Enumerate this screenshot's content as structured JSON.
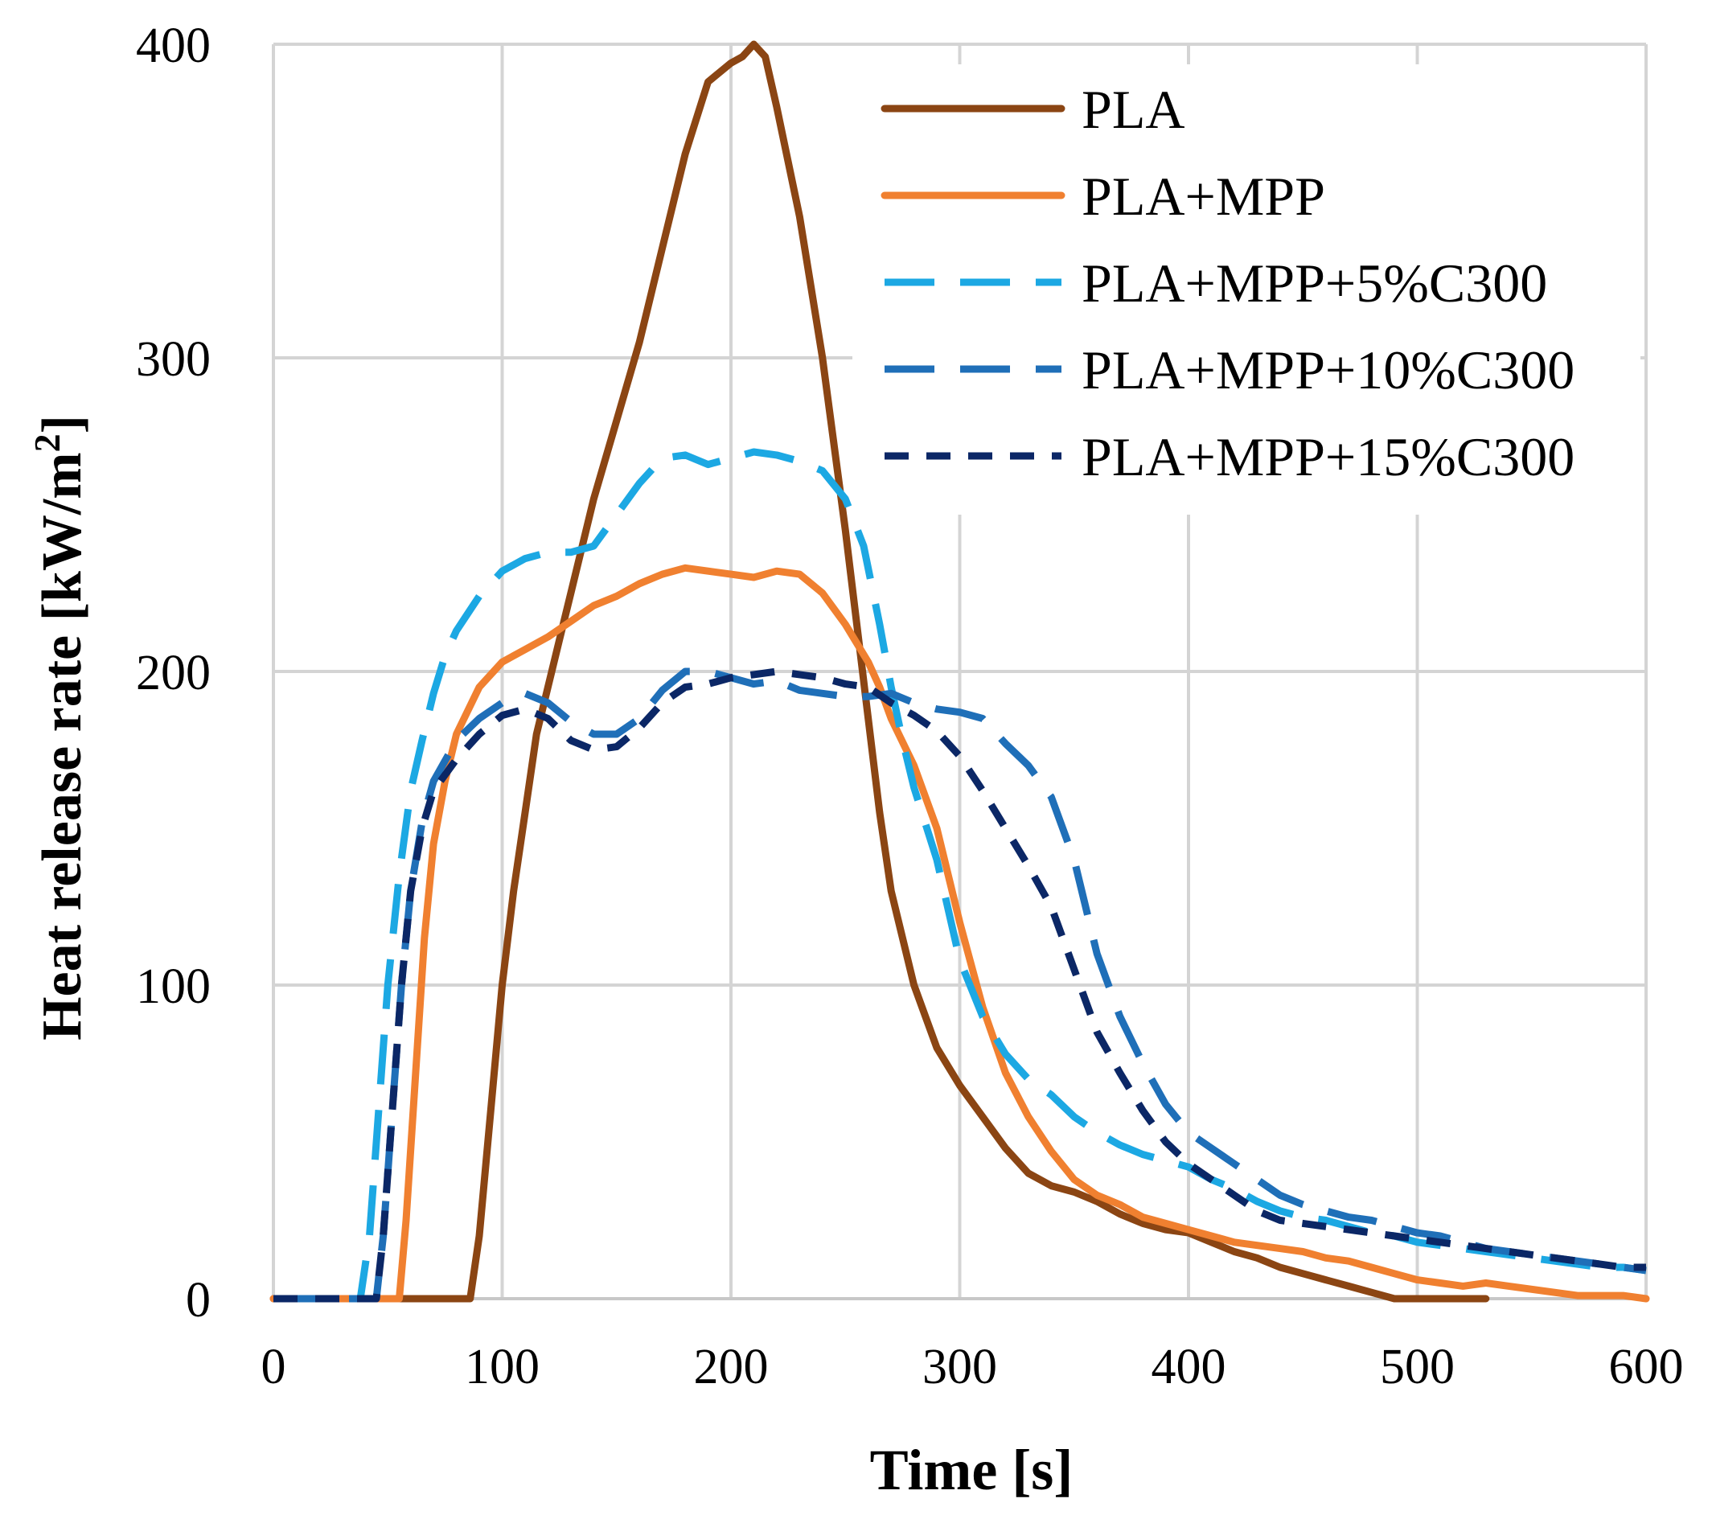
{
  "chart_data": {
    "type": "line",
    "title": "",
    "xlabel": "Time [s]",
    "ylabel": "Heat release rate [kW/m",
    "ylabel_superscript": "2",
    "ylabel_suffix": "]",
    "xlim": [
      0,
      600
    ],
    "ylim": [
      0,
      400
    ],
    "x_ticks": [
      "0",
      "100",
      "200",
      "300",
      "400",
      "500",
      "600"
    ],
    "y_ticks": [
      "0",
      "100",
      "200",
      "300",
      "400"
    ],
    "grid": true,
    "legend_position": "top-right",
    "series": [
      {
        "name": "PLA",
        "color": "#8B4513",
        "dash": "solid",
        "points": [
          [
            0,
            0
          ],
          [
            86,
            0
          ],
          [
            90,
            20
          ],
          [
            95,
            60
          ],
          [
            100,
            100
          ],
          [
            105,
            130
          ],
          [
            110,
            155
          ],
          [
            115,
            180
          ],
          [
            120,
            195
          ],
          [
            125,
            210
          ],
          [
            130,
            225
          ],
          [
            135,
            240
          ],
          [
            140,
            255
          ],
          [
            150,
            280
          ],
          [
            160,
            305
          ],
          [
            170,
            335
          ],
          [
            180,
            365
          ],
          [
            190,
            388
          ],
          [
            200,
            394
          ],
          [
            205,
            396
          ],
          [
            210,
            400
          ],
          [
            215,
            396
          ],
          [
            220,
            380
          ],
          [
            230,
            345
          ],
          [
            240,
            300
          ],
          [
            250,
            245
          ],
          [
            260,
            185
          ],
          [
            265,
            155
          ],
          [
            270,
            130
          ],
          [
            280,
            100
          ],
          [
            290,
            80
          ],
          [
            300,
            68
          ],
          [
            310,
            58
          ],
          [
            320,
            48
          ],
          [
            330,
            40
          ],
          [
            340,
            36
          ],
          [
            350,
            34
          ],
          [
            360,
            31
          ],
          [
            370,
            27
          ],
          [
            380,
            24
          ],
          [
            390,
            22
          ],
          [
            400,
            21
          ],
          [
            410,
            18
          ],
          [
            420,
            15
          ],
          [
            430,
            13
          ],
          [
            440,
            10
          ],
          [
            450,
            8
          ],
          [
            460,
            6
          ],
          [
            470,
            4
          ],
          [
            480,
            2
          ],
          [
            490,
            0
          ],
          [
            530,
            0
          ]
        ]
      },
      {
        "name": "PLA+MPP",
        "color": "#F08030",
        "dash": "solid",
        "points": [
          [
            0,
            0
          ],
          [
            55,
            0
          ],
          [
            58,
            25
          ],
          [
            62,
            70
          ],
          [
            66,
            115
          ],
          [
            70,
            145
          ],
          [
            75,
            165
          ],
          [
            80,
            180
          ],
          [
            90,
            195
          ],
          [
            100,
            203
          ],
          [
            110,
            207
          ],
          [
            120,
            211
          ],
          [
            130,
            216
          ],
          [
            140,
            221
          ],
          [
            150,
            224
          ],
          [
            160,
            228
          ],
          [
            170,
            231
          ],
          [
            180,
            233
          ],
          [
            190,
            232
          ],
          [
            200,
            231
          ],
          [
            210,
            230
          ],
          [
            220,
            232
          ],
          [
            230,
            231
          ],
          [
            240,
            225
          ],
          [
            250,
            215
          ],
          [
            260,
            203
          ],
          [
            265,
            195
          ],
          [
            270,
            185
          ],
          [
            280,
            170
          ],
          [
            290,
            150
          ],
          [
            300,
            120
          ],
          [
            310,
            93
          ],
          [
            320,
            72
          ],
          [
            330,
            58
          ],
          [
            340,
            47
          ],
          [
            350,
            38
          ],
          [
            360,
            33
          ],
          [
            370,
            30
          ],
          [
            380,
            26
          ],
          [
            390,
            24
          ],
          [
            400,
            22
          ],
          [
            410,
            20
          ],
          [
            420,
            18
          ],
          [
            430,
            17
          ],
          [
            440,
            16
          ],
          [
            450,
            15
          ],
          [
            460,
            13
          ],
          [
            470,
            12
          ],
          [
            480,
            10
          ],
          [
            490,
            8
          ],
          [
            500,
            6
          ],
          [
            510,
            5
          ],
          [
            520,
            4
          ],
          [
            530,
            5
          ],
          [
            540,
            4
          ],
          [
            550,
            3
          ],
          [
            560,
            2
          ],
          [
            570,
            1
          ],
          [
            580,
            1
          ],
          [
            590,
            1
          ],
          [
            600,
            0
          ]
        ]
      },
      {
        "name": "PLA+MPP+5%C300",
        "color": "#1CA8E3",
        "dash": "long",
        "points": [
          [
            0,
            0
          ],
          [
            38,
            0
          ],
          [
            42,
            20
          ],
          [
            46,
            60
          ],
          [
            50,
            100
          ],
          [
            55,
            135
          ],
          [
            60,
            162
          ],
          [
            65,
            178
          ],
          [
            70,
            193
          ],
          [
            75,
            205
          ],
          [
            80,
            213
          ],
          [
            90,
            224
          ],
          [
            100,
            232
          ],
          [
            110,
            236
          ],
          [
            120,
            238
          ],
          [
            130,
            238
          ],
          [
            140,
            240
          ],
          [
            150,
            250
          ],
          [
            160,
            260
          ],
          [
            170,
            268
          ],
          [
            180,
            269
          ],
          [
            190,
            266
          ],
          [
            200,
            268
          ],
          [
            210,
            270
          ],
          [
            220,
            269
          ],
          [
            230,
            267
          ],
          [
            240,
            264
          ],
          [
            250,
            255
          ],
          [
            258,
            240
          ],
          [
            265,
            215
          ],
          [
            270,
            195
          ],
          [
            275,
            178
          ],
          [
            280,
            163
          ],
          [
            290,
            140
          ],
          [
            300,
            108
          ],
          [
            310,
            90
          ],
          [
            320,
            78
          ],
          [
            330,
            70
          ],
          [
            340,
            65
          ],
          [
            350,
            58
          ],
          [
            360,
            53
          ],
          [
            370,
            49
          ],
          [
            380,
            46
          ],
          [
            390,
            44
          ],
          [
            400,
            42
          ],
          [
            410,
            38
          ],
          [
            420,
            35
          ],
          [
            430,
            31
          ],
          [
            440,
            28
          ],
          [
            450,
            26
          ],
          [
            460,
            25
          ],
          [
            470,
            23
          ],
          [
            480,
            21
          ],
          [
            490,
            20
          ],
          [
            500,
            18
          ],
          [
            510,
            17
          ],
          [
            520,
            16
          ],
          [
            530,
            15
          ],
          [
            540,
            14
          ],
          [
            550,
            13
          ],
          [
            560,
            12
          ],
          [
            570,
            11
          ],
          [
            580,
            10
          ],
          [
            590,
            10
          ],
          [
            600,
            9
          ]
        ]
      },
      {
        "name": "PLA+MPP+10%C300",
        "color": "#1F6FB8",
        "dash": "long",
        "points": [
          [
            0,
            0
          ],
          [
            45,
            0
          ],
          [
            48,
            20
          ],
          [
            52,
            60
          ],
          [
            56,
            100
          ],
          [
            60,
            130
          ],
          [
            65,
            152
          ],
          [
            70,
            165
          ],
          [
            80,
            178
          ],
          [
            90,
            185
          ],
          [
            100,
            190
          ],
          [
            110,
            193
          ],
          [
            120,
            190
          ],
          [
            130,
            184
          ],
          [
            140,
            180
          ],
          [
            150,
            180
          ],
          [
            160,
            185
          ],
          [
            170,
            194
          ],
          [
            180,
            200
          ],
          [
            190,
            200
          ],
          [
            200,
            198
          ],
          [
            210,
            196
          ],
          [
            220,
            197
          ],
          [
            230,
            194
          ],
          [
            240,
            193
          ],
          [
            250,
            192
          ],
          [
            260,
            192
          ],
          [
            270,
            193
          ],
          [
            280,
            190
          ],
          [
            290,
            188
          ],
          [
            300,
            187
          ],
          [
            310,
            185
          ],
          [
            320,
            177
          ],
          [
            330,
            170
          ],
          [
            340,
            160
          ],
          [
            350,
            140
          ],
          [
            360,
            110
          ],
          [
            370,
            90
          ],
          [
            380,
            75
          ],
          [
            390,
            62
          ],
          [
            400,
            53
          ],
          [
            410,
            48
          ],
          [
            420,
            43
          ],
          [
            430,
            38
          ],
          [
            440,
            33
          ],
          [
            450,
            30
          ],
          [
            460,
            28
          ],
          [
            470,
            26
          ],
          [
            480,
            25
          ],
          [
            490,
            23
          ],
          [
            500,
            21
          ],
          [
            510,
            20
          ],
          [
            520,
            18
          ],
          [
            530,
            16
          ],
          [
            540,
            15
          ],
          [
            550,
            14
          ],
          [
            560,
            13
          ],
          [
            570,
            12
          ],
          [
            580,
            11
          ],
          [
            590,
            10
          ],
          [
            600,
            9
          ]
        ]
      },
      {
        "name": "PLA+MPP+15%C300",
        "color": "#0B2766",
        "dash": "short",
        "points": [
          [
            0,
            0
          ],
          [
            45,
            0
          ],
          [
            48,
            20
          ],
          [
            52,
            60
          ],
          [
            56,
            100
          ],
          [
            60,
            130
          ],
          [
            65,
            150
          ],
          [
            70,
            162
          ],
          [
            80,
            172
          ],
          [
            90,
            180
          ],
          [
            100,
            186
          ],
          [
            110,
            188
          ],
          [
            120,
            185
          ],
          [
            130,
            178
          ],
          [
            140,
            175
          ],
          [
            150,
            176
          ],
          [
            160,
            182
          ],
          [
            170,
            190
          ],
          [
            180,
            195
          ],
          [
            190,
            196
          ],
          [
            200,
            198
          ],
          [
            210,
            199
          ],
          [
            220,
            200
          ],
          [
            230,
            199
          ],
          [
            240,
            198
          ],
          [
            250,
            196
          ],
          [
            260,
            195
          ],
          [
            270,
            190
          ],
          [
            280,
            186
          ],
          [
            290,
            181
          ],
          [
            300,
            173
          ],
          [
            310,
            162
          ],
          [
            320,
            150
          ],
          [
            330,
            138
          ],
          [
            340,
            125
          ],
          [
            350,
            105
          ],
          [
            360,
            85
          ],
          [
            370,
            72
          ],
          [
            380,
            60
          ],
          [
            390,
            50
          ],
          [
            400,
            43
          ],
          [
            410,
            38
          ],
          [
            420,
            33
          ],
          [
            430,
            28
          ],
          [
            440,
            25
          ],
          [
            450,
            24
          ],
          [
            460,
            23
          ],
          [
            470,
            22
          ],
          [
            480,
            21
          ],
          [
            490,
            20
          ],
          [
            500,
            19
          ],
          [
            510,
            18
          ],
          [
            520,
            17
          ],
          [
            530,
            16
          ],
          [
            540,
            15
          ],
          [
            550,
            14
          ],
          [
            560,
            13
          ],
          [
            570,
            12
          ],
          [
            580,
            11
          ],
          [
            590,
            10
          ],
          [
            600,
            10
          ]
        ]
      }
    ]
  }
}
